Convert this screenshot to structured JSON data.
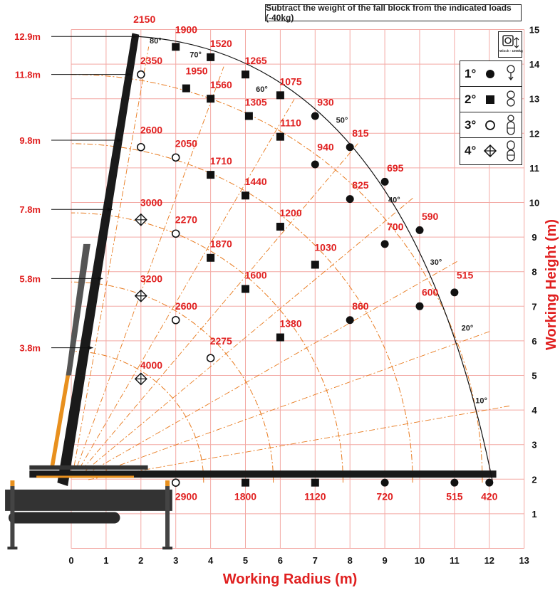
{
  "note": "Subtract the weight of the fall block from the indicated loads (-40kg)",
  "winch_label": "Winch - 1000kg",
  "legend": [
    {
      "label": "1°",
      "marker": "filled-circle",
      "icon": "one-sheave-hook-icon"
    },
    {
      "label": "2°",
      "marker": "filled-square",
      "icon": "two-sheave-block-icon"
    },
    {
      "label": "3°",
      "marker": "open-circle",
      "icon": "three-sheave-block-icon"
    },
    {
      "label": "4°",
      "marker": "crossed-diamond",
      "icon": "four-sheave-block-icon"
    }
  ],
  "colors": {
    "grid": "#f3a9a4",
    "red_text": "#e02020",
    "arc": "#e87a1e",
    "boom_orange": "#e8901e"
  },
  "chart_data": {
    "type": "scatter",
    "xlabel": "Working Radius (m)",
    "ylabel": "Working Height (m)",
    "xlim": [
      0,
      13
    ],
    "ylim": [
      0,
      15
    ],
    "x_ticks": [
      "0",
      "1",
      "2",
      "3",
      "4",
      "5",
      "6",
      "7",
      "8",
      "9",
      "10",
      "11",
      "12",
      "13"
    ],
    "y_ticks": [
      "1",
      "2",
      "3",
      "4",
      "5",
      "6",
      "7",
      "8",
      "9",
      "10",
      "11",
      "12",
      "13",
      "14",
      "15"
    ],
    "boom_lengths": [
      {
        "label": "12.9m",
        "y": 14.8
      },
      {
        "label": "11.8m",
        "y": 13.7
      },
      {
        "label": "9.8m",
        "y": 11.8
      },
      {
        "label": "7.8m",
        "y": 9.8
      },
      {
        "label": "5.8m",
        "y": 7.8
      },
      {
        "label": "3.8m",
        "y": 5.8
      }
    ],
    "angle_labels": [
      {
        "label": "80°",
        "x": 2.25,
        "y": 14.6
      },
      {
        "label": "70°",
        "x": 3.4,
        "y": 14.2
      },
      {
        "label": "60°",
        "x": 5.3,
        "y": 13.2
      },
      {
        "label": "50°",
        "x": 7.6,
        "y": 12.3
      },
      {
        "label": "40°",
        "x": 9.1,
        "y": 10.0
      },
      {
        "label": "30°",
        "x": 10.3,
        "y": 8.2
      },
      {
        "label": "20°",
        "x": 11.2,
        "y": 6.3
      },
      {
        "label": "10°",
        "x": 11.6,
        "y": 4.2
      }
    ],
    "points": [
      {
        "x": 1.9,
        "y": 14.8,
        "load": "2150",
        "marker": "none",
        "lx": 2.1,
        "ly": 15.2
      },
      {
        "x": 3.0,
        "y": 14.5,
        "load": "1900",
        "marker": "filled-square",
        "lx": 3.3,
        "ly": 14.9
      },
      {
        "x": 4.0,
        "y": 14.2,
        "load": "1520",
        "marker": "filled-square",
        "lx": 4.3,
        "ly": 14.5
      },
      {
        "x": 5.0,
        "y": 13.7,
        "load": "1265",
        "marker": "filled-square",
        "lx": 5.3,
        "ly": 14.0
      },
      {
        "x": 6.0,
        "y": 13.1,
        "load": "1075",
        "marker": "filled-square",
        "lx": 6.3,
        "ly": 13.4
      },
      {
        "x": 7.0,
        "y": 12.5,
        "load": "930",
        "marker": "filled-circle",
        "lx": 7.3,
        "ly": 12.8
      },
      {
        "x": 8.0,
        "y": 11.6,
        "load": "815",
        "marker": "filled-circle",
        "lx": 8.3,
        "ly": 11.9
      },
      {
        "x": 9.0,
        "y": 10.6,
        "load": "695",
        "marker": "filled-circle",
        "lx": 9.3,
        "ly": 10.9
      },
      {
        "x": 10.0,
        "y": 9.2,
        "load": "590",
        "marker": "filled-circle",
        "lx": 10.3,
        "ly": 9.5
      },
      {
        "x": 11.0,
        "y": 7.4,
        "load": "515",
        "marker": "filled-circle",
        "lx": 11.3,
        "ly": 7.8
      },
      {
        "x": 2.0,
        "y": 13.7,
        "load": "2350",
        "marker": "open-circle",
        "lx": 2.3,
        "ly": 14.0
      },
      {
        "x": 3.3,
        "y": 13.3,
        "load": "1950",
        "marker": "filled-square",
        "lx": 3.6,
        "ly": 13.7
      },
      {
        "x": 4.0,
        "y": 13.0,
        "load": "1560",
        "marker": "filled-square",
        "lx": 4.3,
        "ly": 13.3
      },
      {
        "x": 5.1,
        "y": 12.5,
        "load": "1305",
        "marker": "filled-square",
        "lx": 5.3,
        "ly": 12.8
      },
      {
        "x": 6.0,
        "y": 11.9,
        "load": "1110",
        "marker": "filled-square",
        "lx": 6.3,
        "ly": 12.2
      },
      {
        "x": 7.0,
        "y": 11.1,
        "load": "940",
        "marker": "filled-circle",
        "lx": 7.3,
        "ly": 11.5
      },
      {
        "x": 8.0,
        "y": 10.1,
        "load": "825",
        "marker": "filled-circle",
        "lx": 8.3,
        "ly": 10.4
      },
      {
        "x": 9.0,
        "y": 8.8,
        "load": "700",
        "marker": "filled-circle",
        "lx": 9.3,
        "ly": 9.2
      },
      {
        "x": 10.0,
        "y": 7.0,
        "load": "600",
        "marker": "filled-circle",
        "lx": 10.3,
        "ly": 7.3
      },
      {
        "x": 2.0,
        "y": 11.6,
        "load": "2600",
        "marker": "open-circle",
        "lx": 2.3,
        "ly": 12.0
      },
      {
        "x": 3.0,
        "y": 11.3,
        "load": "2050",
        "marker": "open-circle",
        "lx": 3.3,
        "ly": 11.6
      },
      {
        "x": 4.0,
        "y": 10.8,
        "load": "1710",
        "marker": "filled-square",
        "lx": 4.3,
        "ly": 11.1
      },
      {
        "x": 5.0,
        "y": 10.2,
        "load": "1440",
        "marker": "filled-square",
        "lx": 5.3,
        "ly": 10.5
      },
      {
        "x": 6.0,
        "y": 9.3,
        "load": "1200",
        "marker": "filled-square",
        "lx": 6.3,
        "ly": 9.6
      },
      {
        "x": 7.0,
        "y": 8.2,
        "load": "1030",
        "marker": "filled-square",
        "lx": 7.3,
        "ly": 8.6
      },
      {
        "x": 8.0,
        "y": 6.6,
        "load": "860",
        "marker": "filled-circle",
        "lx": 8.3,
        "ly": 6.9
      },
      {
        "x": 2.0,
        "y": 9.5,
        "load": "3000",
        "marker": "crossed-diamond",
        "lx": 2.3,
        "ly": 9.9
      },
      {
        "x": 3.0,
        "y": 9.1,
        "load": "2270",
        "marker": "open-circle",
        "lx": 3.3,
        "ly": 9.4
      },
      {
        "x": 4.0,
        "y": 8.4,
        "load": "1870",
        "marker": "filled-square",
        "lx": 4.3,
        "ly": 8.7
      },
      {
        "x": 5.0,
        "y": 7.5,
        "load": "1600",
        "marker": "filled-square",
        "lx": 5.3,
        "ly": 7.8
      },
      {
        "x": 6.0,
        "y": 6.1,
        "load": "1380",
        "marker": "filled-square",
        "lx": 6.3,
        "ly": 6.4
      },
      {
        "x": 2.0,
        "y": 7.3,
        "load": "3200",
        "marker": "crossed-diamond",
        "lx": 2.3,
        "ly": 7.7
      },
      {
        "x": 3.0,
        "y": 6.6,
        "load": "2600",
        "marker": "open-circle",
        "lx": 3.3,
        "ly": 6.9
      },
      {
        "x": 4.0,
        "y": 5.5,
        "load": "2275",
        "marker": "open-circle",
        "lx": 4.3,
        "ly": 5.9
      },
      {
        "x": 2.0,
        "y": 4.9,
        "load": "4000",
        "marker": "crossed-diamond",
        "lx": 2.3,
        "ly": 5.2
      },
      {
        "x": 3.0,
        "y": 1.9,
        "load": "2900",
        "marker": "open-circle",
        "lx": 3.3,
        "ly": 1.4
      },
      {
        "x": 5.0,
        "y": 1.9,
        "load": "1800",
        "marker": "filled-square",
        "lx": 5.0,
        "ly": 1.4
      },
      {
        "x": 7.0,
        "y": 1.9,
        "load": "1120",
        "marker": "filled-square",
        "lx": 7.0,
        "ly": 1.4
      },
      {
        "x": 9.0,
        "y": 1.9,
        "load": "720",
        "marker": "filled-circle",
        "lx": 9.0,
        "ly": 1.4
      },
      {
        "x": 11.0,
        "y": 1.9,
        "load": "515",
        "marker": "filled-circle",
        "lx": 11.0,
        "ly": 1.4
      },
      {
        "x": 12.0,
        "y": 1.9,
        "load": "420",
        "marker": "filled-circle",
        "lx": 12.0,
        "ly": 1.4
      }
    ]
  }
}
